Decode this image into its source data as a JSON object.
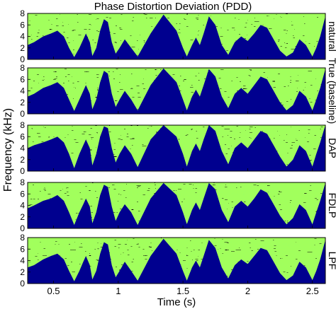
{
  "chart_data": {
    "type": "heatmap",
    "title": "Phase Distortion Deviation (PDD)",
    "xlabel": "Time (s)",
    "ylabel": "Frequency (kHz)",
    "xlim": [
      0.3,
      2.6
    ],
    "ylim": [
      0,
      8
    ],
    "x_ticks": [
      0.5,
      1,
      1.5,
      2,
      2.5
    ],
    "x_tick_labels": [
      "0.5",
      "1",
      "1.5",
      "2",
      "2.5"
    ],
    "y_ticks": [
      0,
      2,
      4,
      6,
      8
    ],
    "y_tick_labels": [
      "0",
      "2",
      "4",
      "6",
      "8"
    ],
    "colormap": [
      "#00008f",
      "#0050ff",
      "#00d7ff",
      "#5cffa3",
      "#e4ff1a",
      "#ff9b00",
      "#ff2600",
      "#8a0000"
    ],
    "panels": [
      {
        "label": "natural",
        "envelope_x": [
          0.3,
          0.35,
          0.42,
          0.48,
          0.53,
          0.58,
          0.62,
          0.66,
          0.7,
          0.73,
          0.75,
          0.78,
          0.8,
          0.83,
          0.86,
          0.89,
          0.92,
          0.95,
          0.98,
          1.01,
          1.05,
          1.1,
          1.15,
          1.25,
          1.35,
          1.45,
          1.5,
          1.53,
          1.57,
          1.6,
          1.63,
          1.66,
          1.7,
          1.75,
          1.8,
          1.85,
          1.9,
          1.95,
          2.0,
          2.05,
          2.1,
          2.15,
          2.2,
          2.25,
          2.3,
          2.35,
          2.4,
          2.45,
          2.5,
          2.53,
          2.56,
          2.6
        ],
        "envelope_y": [
          2.5,
          3.0,
          4.0,
          4.5,
          5.0,
          4.0,
          2.0,
          0.4,
          2.0,
          3.5,
          4.5,
          3.0,
          0.6,
          2.0,
          5.0,
          7.0,
          6.5,
          3.0,
          1.0,
          2.0,
          3.5,
          2.0,
          0.5,
          4.5,
          7.8,
          5.0,
          2.0,
          0.5,
          2.5,
          3.8,
          2.5,
          4.5,
          7.5,
          6.0,
          2.5,
          0.8,
          3.0,
          4.0,
          3.2,
          4.5,
          6.0,
          5.5,
          3.5,
          1.5,
          0.5,
          1.2,
          3.5,
          2.5,
          0.5,
          2.0,
          4.0,
          7.5
        ]
      },
      {
        "label": "True (baseline)",
        "envelope_x": [
          0.3,
          0.35,
          0.42,
          0.48,
          0.53,
          0.58,
          0.62,
          0.66,
          0.7,
          0.73,
          0.75,
          0.78,
          0.8,
          0.83,
          0.86,
          0.89,
          0.92,
          0.95,
          0.98,
          1.01,
          1.05,
          1.1,
          1.15,
          1.25,
          1.35,
          1.45,
          1.5,
          1.53,
          1.57,
          1.6,
          1.63,
          1.66,
          1.7,
          1.75,
          1.8,
          1.85,
          1.9,
          1.95,
          2.0,
          2.05,
          2.1,
          2.15,
          2.2,
          2.25,
          2.3,
          2.35,
          2.4,
          2.45,
          2.5,
          2.53,
          2.56,
          2.6
        ],
        "envelope_y": [
          3.0,
          3.5,
          4.5,
          5.0,
          5.5,
          4.5,
          2.5,
          0.5,
          2.5,
          4.0,
          5.0,
          3.5,
          0.8,
          2.5,
          5.5,
          7.5,
          7.0,
          3.5,
          1.2,
          2.5,
          4.0,
          2.5,
          0.6,
          5.0,
          7.9,
          5.5,
          2.5,
          0.6,
          3.0,
          4.2,
          3.0,
          5.0,
          7.8,
          6.5,
          3.0,
          1.0,
          3.5,
          4.5,
          3.5,
          5.0,
          6.5,
          6.0,
          4.0,
          2.0,
          0.6,
          1.5,
          4.0,
          3.0,
          0.6,
          2.5,
          4.5,
          7.8
        ]
      },
      {
        "label": "DAP",
        "envelope_x": [
          0.3,
          0.35,
          0.42,
          0.48,
          0.53,
          0.58,
          0.62,
          0.66,
          0.7,
          0.73,
          0.75,
          0.78,
          0.8,
          0.83,
          0.86,
          0.89,
          0.92,
          0.95,
          0.98,
          1.01,
          1.05,
          1.1,
          1.15,
          1.25,
          1.35,
          1.45,
          1.5,
          1.53,
          1.57,
          1.6,
          1.63,
          1.66,
          1.7,
          1.75,
          1.8,
          1.85,
          1.9,
          1.95,
          2.0,
          2.05,
          2.1,
          2.15,
          2.2,
          2.25,
          2.3,
          2.35,
          2.4,
          2.45,
          2.5,
          2.53,
          2.56,
          2.6
        ],
        "envelope_y": [
          4.0,
          4.5,
          5.0,
          5.5,
          6.0,
          5.0,
          3.0,
          0.5,
          3.0,
          4.5,
          5.5,
          4.0,
          1.0,
          3.0,
          6.0,
          7.8,
          7.5,
          4.0,
          1.5,
          3.0,
          4.5,
          3.0,
          0.7,
          5.5,
          8.0,
          6.0,
          3.0,
          0.8,
          3.5,
          4.8,
          3.5,
          5.5,
          8.0,
          7.0,
          3.5,
          1.2,
          4.0,
          5.0,
          4.0,
          5.5,
          7.0,
          6.5,
          4.5,
          2.5,
          0.8,
          2.0,
          4.5,
          3.5,
          0.8,
          3.0,
          5.0,
          8.0
        ]
      },
      {
        "label": "FDLP",
        "envelope_x": [
          0.3,
          0.35,
          0.42,
          0.48,
          0.53,
          0.58,
          0.62,
          0.66,
          0.7,
          0.73,
          0.75,
          0.78,
          0.8,
          0.83,
          0.86,
          0.89,
          0.92,
          0.95,
          0.98,
          1.01,
          1.05,
          1.1,
          1.15,
          1.25,
          1.35,
          1.45,
          1.5,
          1.53,
          1.57,
          1.6,
          1.63,
          1.66,
          1.7,
          1.75,
          1.8,
          1.85,
          1.9,
          1.95,
          2.0,
          2.05,
          2.1,
          2.15,
          2.2,
          2.25,
          2.3,
          2.35,
          2.4,
          2.45,
          2.5,
          2.53,
          2.56,
          2.6
        ],
        "envelope_y": [
          3.5,
          4.0,
          4.8,
          5.2,
          5.8,
          4.8,
          2.8,
          0.6,
          2.8,
          4.2,
          5.2,
          3.8,
          0.9,
          2.8,
          5.8,
          7.6,
          7.2,
          3.8,
          1.3,
          2.8,
          4.2,
          2.8,
          0.6,
          5.2,
          7.9,
          5.8,
          2.8,
          0.7,
          3.2,
          4.5,
          3.2,
          5.2,
          7.9,
          6.8,
          3.2,
          1.1,
          3.8,
          4.8,
          3.8,
          5.2,
          6.8,
          6.2,
          4.2,
          2.2,
          0.7,
          1.8,
          4.2,
          3.2,
          0.7,
          2.8,
          4.8,
          7.9
        ]
      },
      {
        "label": "LPF",
        "envelope_x": [
          0.3,
          0.35,
          0.42,
          0.48,
          0.53,
          0.58,
          0.62,
          0.66,
          0.7,
          0.73,
          0.75,
          0.78,
          0.8,
          0.83,
          0.86,
          0.89,
          0.92,
          0.95,
          0.98,
          1.01,
          1.05,
          1.1,
          1.15,
          1.25,
          1.35,
          1.45,
          1.5,
          1.53,
          1.57,
          1.6,
          1.63,
          1.66,
          1.7,
          1.75,
          1.8,
          1.85,
          1.9,
          1.95,
          2.0,
          2.05,
          2.1,
          2.15,
          2.2,
          2.25,
          2.3,
          2.35,
          2.4,
          2.45,
          2.5,
          2.53,
          2.56,
          2.6
        ],
        "envelope_y": [
          2.8,
          3.2,
          4.2,
          4.8,
          5.2,
          4.2,
          2.2,
          0.4,
          2.2,
          3.8,
          4.8,
          3.2,
          0.7,
          2.2,
          5.2,
          7.2,
          6.8,
          3.2,
          1.1,
          2.2,
          3.8,
          2.2,
          0.5,
          4.8,
          7.8,
          5.2,
          2.2,
          0.5,
          2.8,
          4.0,
          2.8,
          4.8,
          7.6,
          6.2,
          2.8,
          0.9,
          3.2,
          4.2,
          3.4,
          4.8,
          6.2,
          5.8,
          3.8,
          1.8,
          0.6,
          1.4,
          3.8,
          2.8,
          0.6,
          2.2,
          4.2,
          7.6
        ]
      }
    ]
  }
}
